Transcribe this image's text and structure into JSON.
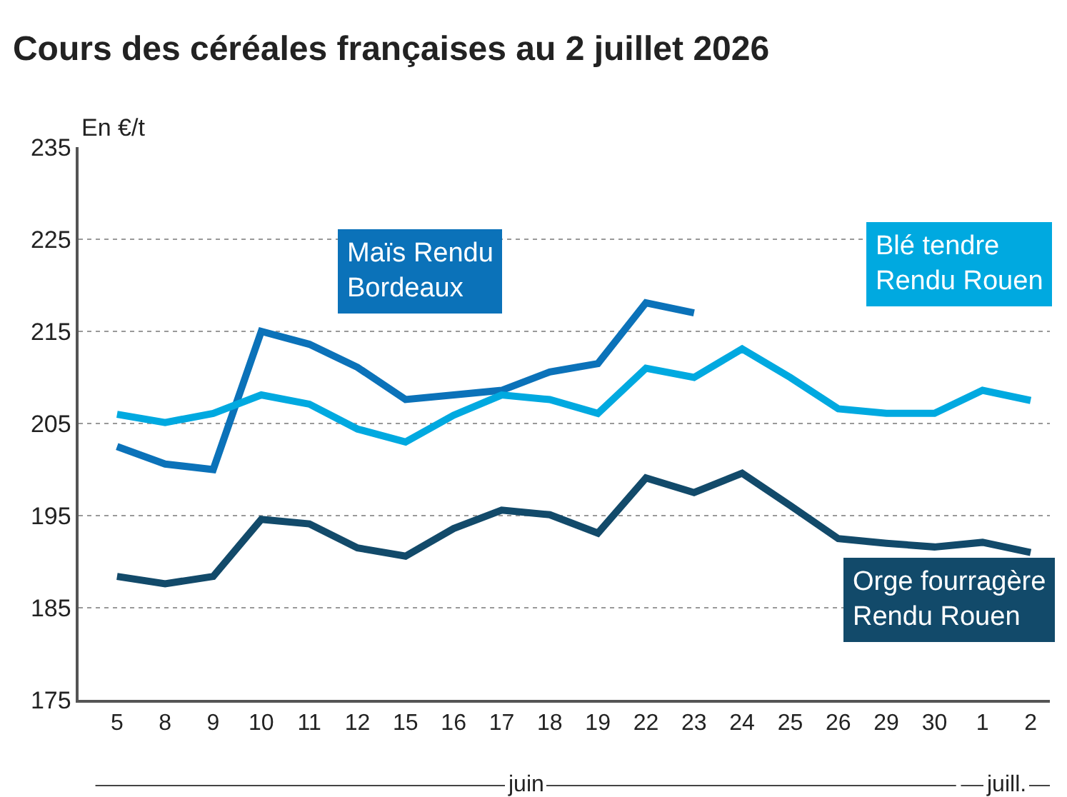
{
  "chart_data": {
    "type": "line",
    "title": "Cours des céréales françaises au 2 juillet 2026",
    "ylabel": "En €/t",
    "categories": [
      "5",
      "8",
      "9",
      "10",
      "11",
      "12",
      "15",
      "16",
      "17",
      "18",
      "19",
      "22",
      "23",
      "24",
      "25",
      "26",
      "29",
      "30",
      "1",
      "2"
    ],
    "series": [
      {
        "name": "Maïs Rendu Bordeaux",
        "color": "#0b72b9",
        "values": [
          202.5,
          200.6,
          200.0,
          215.0,
          213.6,
          211.1,
          207.6,
          208.1,
          208.6,
          210.6,
          211.5,
          218.1,
          217.0,
          null,
          null,
          null,
          null,
          null,
          null,
          null
        ]
      },
      {
        "name": "Blé tendre Rendu Rouen",
        "color": "#00a9e0",
        "values": [
          206.0,
          205.1,
          206.1,
          208.1,
          207.1,
          204.4,
          203.0,
          205.9,
          208.1,
          207.6,
          206.1,
          211.0,
          210.0,
          213.1,
          210.0,
          206.6,
          206.1,
          206.1,
          208.6,
          207.5
        ]
      },
      {
        "name": "Orge fourragère Rendu Rouen",
        "color": "#124a6a",
        "values": [
          188.4,
          187.6,
          188.4,
          194.6,
          194.1,
          191.5,
          190.6,
          193.6,
          195.6,
          195.1,
          193.1,
          199.1,
          197.5,
          199.6,
          196.1,
          192.5,
          192.0,
          191.6,
          192.1,
          191.0
        ]
      }
    ],
    "annotations": [
      "juin",
      "juill."
    ],
    "ylim": [
      175,
      235
    ],
    "yticks": [
      175,
      185,
      195,
      205,
      215,
      225,
      235
    ],
    "grid": "y",
    "legend": false,
    "marker": "none",
    "line_style": "solid"
  }
}
